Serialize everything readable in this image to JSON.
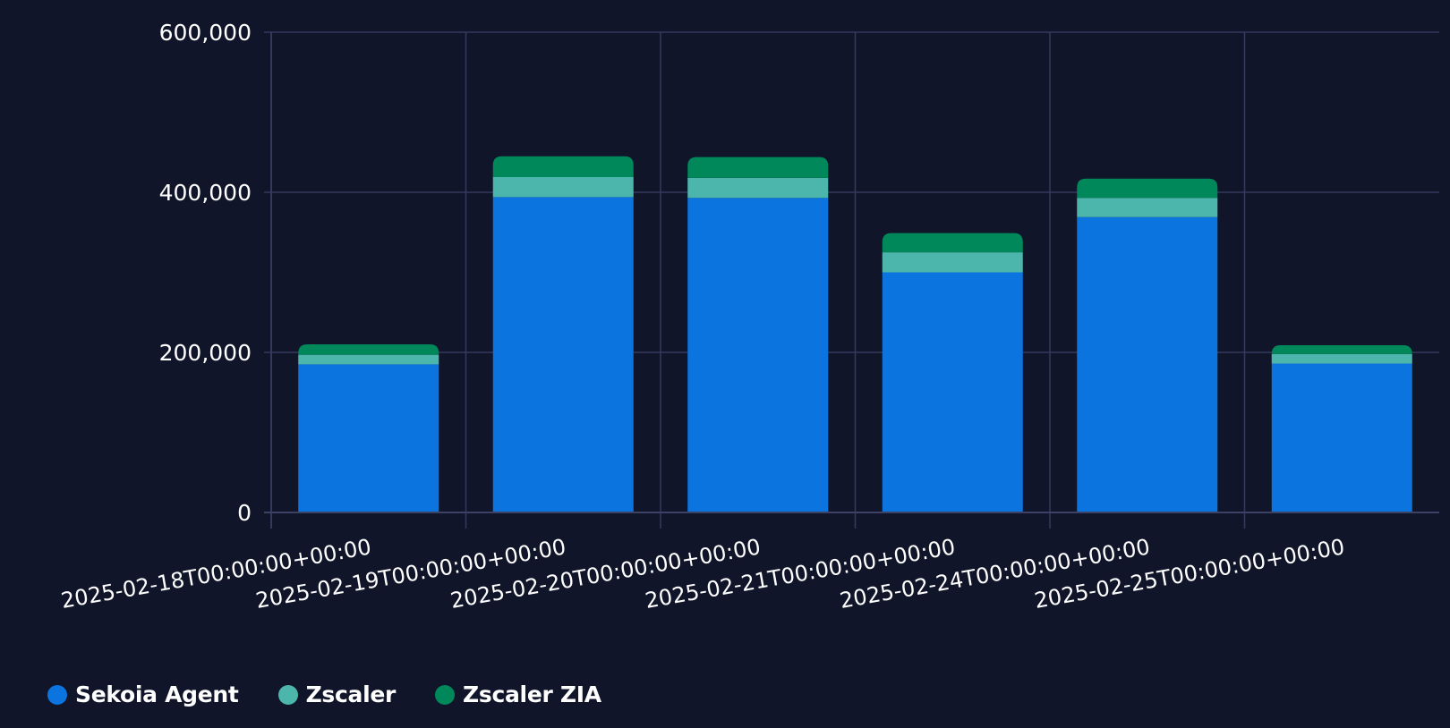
{
  "chart_data": {
    "type": "bar",
    "stacked": true,
    "categories": [
      "2025-02-18T00:00:00+00:00",
      "2025-02-19T00:00:00+00:00",
      "2025-02-20T00:00:00+00:00",
      "2025-02-21T00:00:00+00:00",
      "2025-02-24T00:00:00+00:00",
      "2025-02-25T00:00:00+00:00"
    ],
    "series": [
      {
        "name": "Sekoia Agent",
        "color": "#0b74de",
        "values": [
          185000,
          394000,
          393000,
          300000,
          369000,
          186000
        ]
      },
      {
        "name": "Zscaler",
        "color": "#4db6ac",
        "values": [
          12000,
          25000,
          25000,
          25000,
          24000,
          12000
        ]
      },
      {
        "name": "Zscaler ZIA",
        "color": "#00875a",
        "values": [
          13000,
          26000,
          26000,
          24000,
          24000,
          11000
        ]
      }
    ],
    "yticks": [
      "0",
      "200,000",
      "400,000",
      "600,000"
    ],
    "ytick_values": [
      0,
      200000,
      400000,
      600000
    ],
    "ylim": [
      0,
      600000
    ],
    "title": "",
    "xlabel": "",
    "ylabel": "",
    "grid": true,
    "legend_position": "bottom-left"
  }
}
